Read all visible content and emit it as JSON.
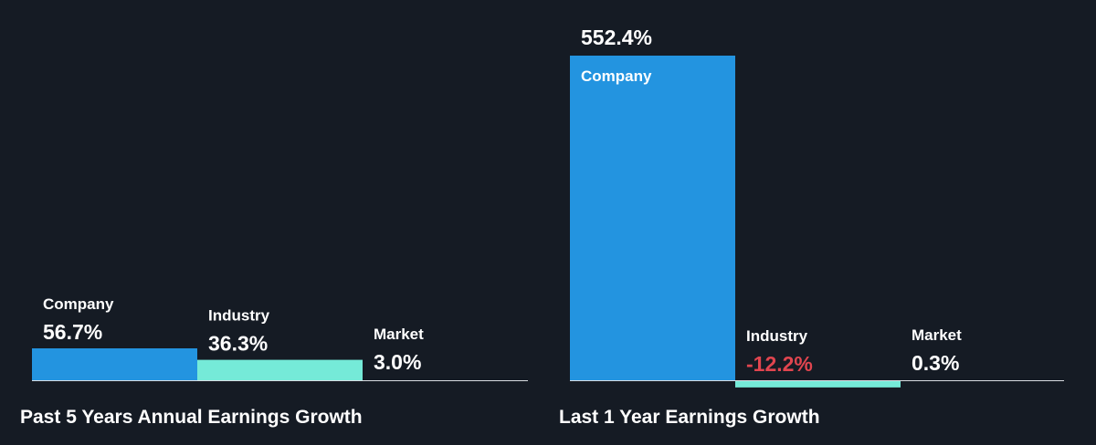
{
  "colors": {
    "background": "#151b24",
    "company": "#2394e0",
    "industry": "#75ead8",
    "market": "#151b24",
    "baseline": "#d9dde2",
    "text": "#ffffff",
    "negative": "#e0454f"
  },
  "chart_data": [
    {
      "type": "bar",
      "title": "Past 5 Years Annual Earnings Growth",
      "categories": [
        "Company",
        "Industry",
        "Market"
      ],
      "values": [
        56.7,
        36.3,
        3.0
      ],
      "value_labels": [
        "56.7%",
        "36.3%",
        "3.0%"
      ],
      "unit": "%",
      "grid": false,
      "legend": "none"
    },
    {
      "type": "bar",
      "title": "Last 1 Year Earnings Growth",
      "categories": [
        "Company",
        "Industry",
        "Market"
      ],
      "values": [
        552.4,
        -12.2,
        0.3
      ],
      "value_labels": [
        "552.4%",
        "-12.2%",
        "0.3%"
      ],
      "unit": "%",
      "grid": false,
      "legend": "none"
    }
  ]
}
